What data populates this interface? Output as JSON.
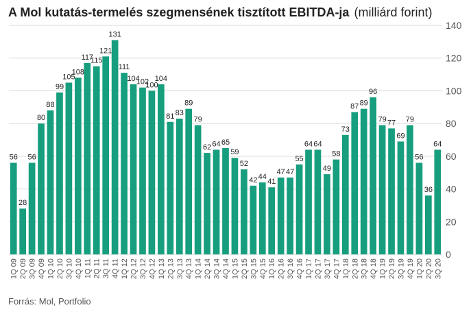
{
  "title": "A Mol kutatás-termelés szegmensének tisztított EBITDA-ja",
  "unit": "(milliárd forint)",
  "source": "Forrás: Mol, Portfolio",
  "colors": {
    "bar": "#169e7e",
    "grid": "#d9d9d9",
    "text": "#222222",
    "axis": "#555555"
  },
  "chart_data": {
    "type": "bar",
    "categories": [
      "1Q 09",
      "2Q 09",
      "3Q 09",
      "4Q 09",
      "1Q 10",
      "2Q 10",
      "3Q 10",
      "4Q 10",
      "1Q 11",
      "2Q 11",
      "3Q 11",
      "4Q 11",
      "1Q 12",
      "2Q 12",
      "3Q 12",
      "4Q 12",
      "1Q 13",
      "2Q 13",
      "3Q 13",
      "4Q 13",
      "1Q 14",
      "2Q 14",
      "3Q 14",
      "4Q 14",
      "1Q 15",
      "2Q 15",
      "3Q 15",
      "4Q 15",
      "1Q 16",
      "2Q 16",
      "3Q 16",
      "4Q 16",
      "1Q 17",
      "2Q 17",
      "3Q 17",
      "4Q 17",
      "1Q 18",
      "2Q 18",
      "3Q 18",
      "4Q 18",
      "1Q 19",
      "2Q 19",
      "3Q 19",
      "4Q 19",
      "1Q 20",
      "2Q 20",
      "3Q 20"
    ],
    "values": [
      56,
      28,
      56,
      80,
      88,
      99,
      105,
      108,
      117,
      115,
      121,
      131,
      111,
      104,
      102,
      100,
      104,
      81,
      83,
      89,
      79,
      62,
      64,
      65,
      59,
      52,
      42,
      44,
      41,
      47,
      47,
      55,
      64,
      64,
      49,
      58,
      73,
      87,
      89,
      96,
      79,
      77,
      69,
      79,
      56,
      36,
      64
    ],
    "ylim": [
      0,
      140
    ],
    "yticks": [
      "0",
      "20",
      "40",
      "60",
      "80",
      "100",
      "120",
      "140"
    ],
    "y_axis_position": "right",
    "grid": true
  }
}
